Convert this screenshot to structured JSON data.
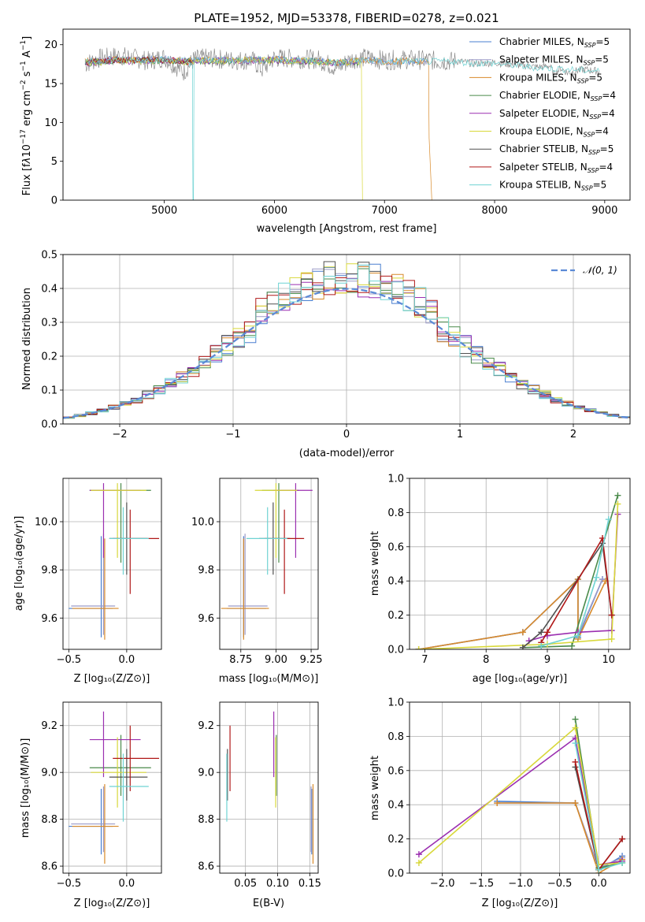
{
  "figure_title": "PLATE=1952, MJD=53378, FIBERID=0278, z=0.021",
  "model_colors": [
    "#4a7fd0",
    "#9b9bc8",
    "#d88a2a",
    "#4a8a4a",
    "#9b2fb0",
    "#d8d83a",
    "#505050",
    "#b01818",
    "#6fd3d3"
  ],
  "chart_data": [
    {
      "id": "spectrum",
      "type": "line",
      "title": "PLATE=1952, MJD=53378, FIBERID=0278, z=0.021",
      "xlabel": "wavelength [Angstrom, rest frame]",
      "ylabel": "Flux [f$_{\\lambda}$10$^{-17}$ erg cm$^{-2}$ s$^{-1}$ A$^{-1}$]",
      "xlim": [
        4080,
        9230
      ],
      "ylim": [
        0,
        22
      ],
      "xticks": [
        5000,
        6000,
        7000,
        8000,
        9000
      ],
      "yticks": [
        0,
        5,
        10,
        15,
        20
      ],
      "legend_position": "top-right",
      "legend": [
        {
          "text": "Chabrier MILES, N",
          "sub": "SSP",
          "suffix": "=5",
          "color": "#4a7fd0"
        },
        {
          "text": "Salpeter MILES, N",
          "sub": "SSP",
          "suffix": "=5",
          "color": "#9b9bc8"
        },
        {
          "text": "Kroupa MILES, N",
          "sub": "SSP",
          "suffix": "=5",
          "color": "#d88a2a"
        },
        {
          "text": "Chabrier ELODIE, N",
          "sub": "SSP",
          "suffix": "=4",
          "color": "#4a8a4a"
        },
        {
          "text": "Salpeter ELODIE, N",
          "sub": "SSP",
          "suffix": "=4",
          "color": "#9b2fb0"
        },
        {
          "text": "Kroupa ELODIE, N",
          "sub": "SSP",
          "suffix": "=4",
          "color": "#d8d83a"
        },
        {
          "text": "Chabrier STELIB, N",
          "sub": "SSP",
          "suffix": "=5",
          "color": "#505050"
        },
        {
          "text": "Salpeter STELIB, N",
          "sub": "SSP",
          "suffix": "=4",
          "color": "#b01818"
        },
        {
          "text": "Kroupa STELIB, N",
          "sub": "SSP",
          "suffix": "=5",
          "color": "#6fd3d3"
        }
      ],
      "series": [
        {
          "name": "data",
          "color": "#808080",
          "x": [
            4280,
            4400,
            4600,
            4860,
            5000,
            5175,
            5270,
            5400,
            5600,
            5800,
            5890,
            6000,
            6200,
            6400,
            6563,
            6700,
            6800,
            6900,
            7000,
            7200,
            7400,
            7500,
            7650,
            7800,
            8000,
            8200,
            8400,
            8500,
            8542,
            8600,
            8662,
            8800,
            8950
          ],
          "y": [
            17.5,
            18.2,
            18.6,
            17.9,
            18.4,
            16.5,
            18.1,
            18.3,
            18.0,
            18.0,
            16.8,
            18.3,
            18.2,
            18.1,
            17.0,
            18.1,
            18.3,
            18.2,
            18.0,
            18.1,
            18.0,
            17.9,
            17.9,
            17.6,
            17.7,
            17.4,
            17.1,
            17.3,
            16.2,
            17.0,
            16.4,
            16.8,
            16.6
          ]
        },
        {
          "name": "Chabrier MILES",
          "color": "#4a7fd0",
          "x": [
            4280,
            4500,
            4800,
            5000,
            5200,
            5400,
            5600,
            5800,
            6000,
            6200,
            6400,
            6600,
            6800,
            7000,
            7200,
            7400
          ],
          "y": [
            17.8,
            18.1,
            18.0,
            18.2,
            17.9,
            18.0,
            18.0,
            18.1,
            18.1,
            18.0,
            17.9,
            17.7,
            18.0,
            17.8,
            17.9,
            17.8
          ]
        },
        {
          "name": "Salpeter MILES",
          "color": "#9b9bc8",
          "x": [
            4280,
            4500,
            4800,
            5000,
            5200,
            5400,
            5600,
            5800,
            6000,
            6200,
            6400,
            6600,
            6800,
            7000,
            7200,
            7400
          ],
          "y": [
            17.8,
            18.1,
            18.0,
            18.2,
            17.9,
            18.0,
            18.0,
            18.1,
            18.1,
            18.0,
            17.9,
            17.7,
            18.0,
            17.8,
            17.9,
            17.8
          ]
        },
        {
          "name": "Kroupa MILES",
          "color": "#d88a2a",
          "x": [
            4280,
            4500,
            4800,
            5000,
            5200,
            5400,
            5600,
            5800,
            6000,
            6200,
            6400,
            6600,
            6800,
            7000,
            7200,
            7400,
            7405,
            7430
          ],
          "y": [
            17.8,
            18.1,
            18.0,
            18.2,
            17.9,
            18.0,
            18.0,
            18.1,
            18.1,
            18.0,
            17.9,
            17.7,
            18.0,
            17.8,
            17.9,
            17.8,
            8.0,
            0
          ]
        },
        {
          "name": "Chabrier ELODIE",
          "color": "#4a8a4a",
          "x": [
            4280,
            4500,
            4800,
            5000,
            5200,
            5400,
            5600,
            5800,
            6000,
            6200,
            6400,
            6600,
            6790
          ],
          "y": [
            17.6,
            17.9,
            17.9,
            18.0,
            17.8,
            17.9,
            17.9,
            18.0,
            18.0,
            17.9,
            17.8,
            17.7,
            17.8
          ]
        },
        {
          "name": "Salpeter ELODIE",
          "color": "#9b2fb0",
          "x": [
            4280,
            4500,
            4800,
            5000,
            5200,
            5400,
            5600,
            5800,
            6000,
            6200,
            6400,
            6600,
            6790
          ],
          "y": [
            17.6,
            17.9,
            17.9,
            18.0,
            17.8,
            17.9,
            17.9,
            18.0,
            18.0,
            17.9,
            17.8,
            17.7,
            17.8
          ]
        },
        {
          "name": "Kroupa ELODIE",
          "color": "#d8d83a",
          "x": [
            4280,
            4500,
            4800,
            5000,
            5200,
            5400,
            5600,
            5800,
            6000,
            6200,
            6400,
            6600,
            6790,
            6795,
            6800
          ],
          "y": [
            17.6,
            17.9,
            17.9,
            18.0,
            17.8,
            17.9,
            17.9,
            18.0,
            18.0,
            17.9,
            17.8,
            17.7,
            17.8,
            8.0,
            0
          ]
        },
        {
          "name": "Chabrier STELIB",
          "color": "#505050",
          "x": [
            4280,
            4500,
            4800,
            5000,
            5200,
            5255
          ],
          "y": [
            17.7,
            18.0,
            18.0,
            18.1,
            17.9,
            17.5
          ]
        },
        {
          "name": "Salpeter STELIB",
          "color": "#b01818",
          "x": [
            4280,
            4500,
            4800,
            5000,
            5200,
            5255
          ],
          "y": [
            17.7,
            18.0,
            18.0,
            18.1,
            17.9,
            17.5
          ]
        },
        {
          "name": "Kroupa STELIB",
          "color": "#6fd3d3",
          "x": [
            4280,
            4500,
            4800,
            5000,
            5200,
            5255,
            5260,
            5265,
            5270,
            5400,
            5600,
            5800,
            6000,
            6200,
            6400,
            6600,
            6800,
            7000,
            7200,
            7400,
            7600,
            7800,
            8000,
            8200,
            8400,
            8600,
            8800,
            8950
          ],
          "y": [
            17.7,
            18.0,
            18.0,
            18.1,
            17.9,
            17.5,
            0,
            0,
            18.0,
            18.0,
            18.0,
            18.1,
            18.1,
            18.0,
            17.9,
            17.7,
            18.0,
            17.8,
            17.9,
            17.8,
            17.9,
            17.6,
            17.6,
            17.3,
            17.0,
            16.9,
            16.7,
            16.6
          ]
        }
      ]
    },
    {
      "id": "residuals",
      "type": "line",
      "xlabel": "(data-model)/error",
      "ylabel": "Normed distribution",
      "xlim": [
        -2.5,
        2.5
      ],
      "ylim": [
        0,
        0.5
      ],
      "xticks": [
        -2,
        -1,
        0,
        1,
        2
      ],
      "yticks": [
        0.0,
        0.1,
        0.2,
        0.3,
        0.4,
        0.5
      ],
      "grid": true,
      "legend_position": "top-right",
      "reference": {
        "name": "𝒩(0, 1)",
        "color": "#5b8ad6",
        "style": "dashed",
        "mu": 0,
        "sigma": 1
      },
      "histogram_step": 0.1
    },
    {
      "id": "age_vs_Z",
      "type": "scatter",
      "xlabel": "Z [log₁₀(Z/Z⊙)]",
      "ylabel": "age  [log₁₀(age/yr)]",
      "xlim": [
        -0.55,
        0.3
      ],
      "ylim": [
        9.47,
        10.18
      ],
      "xticks": [
        -0.5,
        0.0
      ],
      "yticks": [
        9.6,
        9.8,
        10.0
      ],
      "grid": true
    },
    {
      "id": "age_vs_mass",
      "type": "scatter",
      "xlabel": "mass [log₁₀(M/M⊙)]",
      "ylabel": "",
      "xlim": [
        8.6,
        9.3
      ],
      "ylim": [
        9.47,
        10.18
      ],
      "xticks": [
        8.75,
        9.0,
        9.25
      ],
      "yticks": [
        9.6,
        9.8,
        10.0
      ],
      "grid": true
    },
    {
      "id": "weight_vs_age",
      "type": "line",
      "xlabel": "age  [log₁₀(age/yr)]",
      "ylabel": "mass weight",
      "xlim": [
        6.75,
        10.35
      ],
      "ylim": [
        0,
        1.0
      ],
      "xticks": [
        7,
        8,
        9,
        10
      ],
      "yticks": [
        0.0,
        0.2,
        0.4,
        0.6,
        0.8,
        1.0
      ],
      "grid": true
    },
    {
      "id": "mass_vs_Z",
      "type": "scatter",
      "xlabel": "Z [log₁₀(Z/Z⊙)]",
      "ylabel": "mass [log₁₀(M/M⊙)]",
      "xlim": [
        -0.55,
        0.3
      ],
      "ylim": [
        8.57,
        9.3
      ],
      "xticks": [
        -0.5,
        0.0
      ],
      "yticks": [
        8.6,
        8.8,
        9.0,
        9.2
      ],
      "grid": true
    },
    {
      "id": "mass_vs_EBV",
      "type": "scatter",
      "xlabel": "E(B-V)",
      "ylabel": "",
      "xlim": [
        0.01,
        0.163
      ],
      "ylim": [
        8.57,
        9.3
      ],
      "xticks": [
        0.05,
        0.1,
        0.15
      ],
      "yticks": [
        8.6,
        8.8,
        9.0,
        9.2
      ],
      "grid": true
    },
    {
      "id": "weight_vs_Z",
      "type": "line",
      "xlabel": "Z [log₁₀(Z/Z⊙)]",
      "ylabel": "mass weight",
      "xlim": [
        -2.42,
        0.4
      ],
      "ylim": [
        0,
        1.0
      ],
      "xticks": [
        -2.0,
        -1.5,
        -1.0,
        -0.5,
        0.0
      ],
      "yticks": [
        0.0,
        0.2,
        0.4,
        0.6,
        0.8,
        1.0
      ],
      "grid": true
    }
  ],
  "model_params": [
    {
      "name": "Chabrier MILES",
      "color": "#4a7fd0",
      "Z": -0.22,
      "Zerr": [
        0.28,
        0.1
      ],
      "age": 9.64,
      "ageerr": [
        0.12,
        0.3
      ],
      "mass": 8.77,
      "masserr": [
        0.12,
        0.16
      ],
      "ebv": 0.153,
      "mw_age": [
        [
          6.9,
          0.0
        ],
        [
          8.6,
          0.1
        ],
        [
          9.5,
          0.41
        ],
        [
          9.5,
          0.07
        ],
        [
          9.9,
          0.41
        ]
      ],
      "mw_Z": [
        [
          -1.3,
          0.42
        ],
        [
          -0.3,
          0.41
        ],
        [
          0.0,
          0.02
        ],
        [
          0.3,
          0.1
        ]
      ]
    },
    {
      "name": "Salpeter MILES",
      "color": "#9b9bc8",
      "Z": -0.2,
      "Zerr": [
        0.28,
        0.1
      ],
      "age": 9.65,
      "ageerr": [
        0.12,
        0.3
      ],
      "mass": 8.78,
      "masserr": [
        0.12,
        0.16
      ],
      "ebv": 0.152,
      "mw_age": [
        [
          6.9,
          0.0
        ],
        [
          8.6,
          0.1
        ],
        [
          9.5,
          0.41
        ],
        [
          9.5,
          0.08
        ],
        [
          9.9,
          0.41
        ]
      ],
      "mw_Z": [
        [
          -1.3,
          0.41
        ],
        [
          -0.3,
          0.41
        ],
        [
          0.0,
          0.03
        ],
        [
          0.3,
          0.09
        ]
      ]
    },
    {
      "name": "Kroupa MILES",
      "color": "#d88a2a",
      "Z": -0.19,
      "Zerr": [
        0.28,
        0.12
      ],
      "age": 9.64,
      "ageerr": [
        0.13,
        0.29
      ],
      "mass": 8.77,
      "masserr": [
        0.16,
        0.18
      ],
      "ebv": 0.155,
      "mw_age": [
        [
          6.9,
          0.0
        ],
        [
          8.6,
          0.1
        ],
        [
          9.5,
          0.41
        ],
        [
          9.5,
          0.06
        ],
        [
          9.95,
          0.4
        ]
      ],
      "mw_Z": [
        [
          -1.3,
          0.41
        ],
        [
          -0.3,
          0.41
        ],
        [
          0.0,
          0.0
        ],
        [
          0.3,
          0.08
        ]
      ]
    },
    {
      "name": "Chabrier ELODIE",
      "color": "#4a8a4a",
      "Z": -0.05,
      "Zerr": [
        0.27,
        0.26
      ],
      "age": 10.13,
      "ageerr": [
        0.3,
        0.03
      ],
      "mass": 9.02,
      "masserr": [
        0.12,
        0.14
      ],
      "ebv": 0.098,
      "mw_age": [
        [
          8.6,
          0.01
        ],
        [
          9.4,
          0.02
        ],
        [
          10.15,
          0.9
        ]
      ],
      "mw_Z": [
        [
          -0.3,
          0.9
        ],
        [
          0.0,
          0.03
        ],
        [
          0.3,
          0.06
        ]
      ]
    },
    {
      "name": "Salpeter ELODIE",
      "color": "#9b2fb0",
      "Z": -0.2,
      "Zerr": [
        0.12,
        0.32
      ],
      "age": 10.13,
      "ageerr": [
        0.28,
        0.03
      ],
      "mass": 9.14,
      "masserr": [
        0.16,
        0.12
      ],
      "ebv": 0.094,
      "mw_age": [
        [
          8.7,
          0.05
        ],
        [
          9.0,
          0.08
        ],
        [
          9.5,
          0.1
        ],
        [
          10.05,
          0.11
        ],
        [
          10.15,
          0.79
        ]
      ],
      "mw_Z": [
        [
          -2.3,
          0.11
        ],
        [
          -0.3,
          0.79
        ],
        [
          0.0,
          0.05
        ],
        [
          0.3,
          0.07
        ]
      ]
    },
    {
      "name": "Kroupa ELODIE",
      "color": "#d8d83a",
      "Z": -0.08,
      "Zerr": [
        0.23,
        0.25
      ],
      "age": 10.13,
      "ageerr": [
        0.28,
        0.03
      ],
      "mass": 9.0,
      "masserr": [
        0.15,
        0.15
      ],
      "ebv": 0.097,
      "mw_age": [
        [
          6.9,
          0.0
        ],
        [
          9.0,
          0.03
        ],
        [
          10.05,
          0.06
        ],
        [
          10.15,
          0.85
        ]
      ],
      "mw_Z": [
        [
          -2.3,
          0.06
        ],
        [
          -0.3,
          0.85
        ],
        [
          0.0,
          0.05
        ],
        [
          0.3,
          0.06
        ]
      ]
    },
    {
      "name": "Chabrier STELIB",
      "color": "#505050",
      "Z": 0.0,
      "Zerr": [
        0.15,
        0.18
      ],
      "age": 9.93,
      "ageerr": [
        0.15,
        0.15
      ],
      "mass": 8.98,
      "masserr": [
        0.1,
        0.12
      ],
      "ebv": 0.022,
      "mw_age": [
        [
          8.6,
          0.01
        ],
        [
          8.9,
          0.1
        ],
        [
          9.9,
          0.62
        ],
        [
          10.05,
          0.2
        ]
      ],
      "mw_Z": [
        [
          -0.3,
          0.62
        ],
        [
          0.0,
          0.02
        ],
        [
          0.3,
          0.2
        ]
      ]
    },
    {
      "name": "Salpeter STELIB",
      "color": "#b01818",
      "Z": 0.03,
      "Zerr": [
        0.15,
        0.25
      ],
      "age": 9.93,
      "ageerr": [
        0.23,
        0.12
      ],
      "mass": 9.06,
      "masserr": [
        0.14,
        0.14
      ],
      "ebv": 0.026,
      "mw_age": [
        [
          8.9,
          0.04
        ],
        [
          9.0,
          0.1
        ],
        [
          9.9,
          0.65
        ],
        [
          10.05,
          0.2
        ]
      ],
      "mw_Z": [
        [
          -0.3,
          0.65
        ],
        [
          0.0,
          0.02
        ],
        [
          0.3,
          0.2
        ]
      ]
    },
    {
      "name": "Kroupa STELIB",
      "color": "#6fd3d3",
      "Z": -0.03,
      "Zerr": [
        0.12,
        0.22
      ],
      "age": 9.93,
      "ageerr": [
        0.15,
        0.13
      ],
      "mass": 8.94,
      "masserr": [
        0.15,
        0.14
      ],
      "ebv": 0.021,
      "mw_age": [
        [
          8.9,
          0.02
        ],
        [
          9.5,
          0.08
        ],
        [
          9.8,
          0.42
        ],
        [
          10.0,
          0.76
        ]
      ],
      "mw_Z": [
        [
          -0.3,
          0.76
        ],
        [
          0.0,
          0.02
        ],
        [
          0.3,
          0.06
        ]
      ]
    }
  ]
}
